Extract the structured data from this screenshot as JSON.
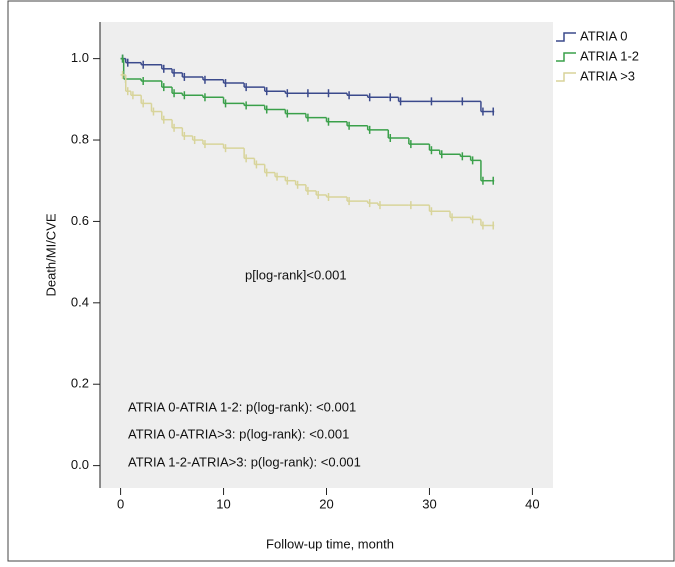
{
  "chart_data": {
    "type": "step",
    "x_label": "Follow-up time, month",
    "y_label": "Death/MI/CVE",
    "annotations": [
      "p[log-rank]<0.001",
      "ATRIA 0-ATRIA 1-2: p(log-rank): <0.001",
      "ATRIA 0-ATRIA>3: p(log-rank): <0.001",
      "ATRIA 1-2-ATRIA>3: p(log-rank): <0.001"
    ],
    "xlim": [
      -2,
      42
    ],
    "xticks": [
      0,
      10,
      20,
      30,
      40
    ],
    "ylim": [
      -0.055,
      1.09
    ],
    "yticks": [
      {
        "value": 0,
        "label": "0.0"
      },
      0.2,
      0.4,
      0.6,
      0.8,
      {
        "value": 1,
        "label": "1.0"
      }
    ],
    "series": [
      {
        "name": "ATRIA 0",
        "color": "#3b4a8c",
        "x": [
          0,
          0.5,
          2,
          4,
          5,
          6,
          8,
          10,
          12,
          14,
          16,
          18,
          20,
          22,
          24,
          26,
          27,
          30,
          33,
          35,
          36
        ],
        "values": [
          1.0,
          0.99,
          0.985,
          0.975,
          0.965,
          0.955,
          0.948,
          0.94,
          0.93,
          0.92,
          0.915,
          0.915,
          0.915,
          0.91,
          0.905,
          0.905,
          0.895,
          0.895,
          0.895,
          0.87,
          0.87
        ]
      },
      {
        "name": "ATRIA 1-2",
        "color": "#3aa04a",
        "x": [
          0,
          0.3,
          2,
          4,
          5,
          6,
          8,
          10,
          12,
          14,
          16,
          18,
          20,
          22,
          24,
          26,
          28,
          30,
          31,
          33,
          34,
          35,
          36
        ],
        "values": [
          1.0,
          0.95,
          0.945,
          0.93,
          0.915,
          0.91,
          0.905,
          0.89,
          0.885,
          0.875,
          0.865,
          0.855,
          0.845,
          0.835,
          0.825,
          0.805,
          0.79,
          0.775,
          0.765,
          0.76,
          0.75,
          0.7,
          0.7
        ]
      },
      {
        "name": "ATRIA >3",
        "color": "#d8d49a",
        "x": [
          0,
          0.5,
          1,
          2,
          3,
          4,
          5,
          6,
          7,
          8,
          10,
          12,
          13,
          14,
          15,
          16,
          17,
          18,
          19,
          20,
          22,
          24,
          25,
          28,
          30,
          32,
          34,
          35,
          36
        ],
        "values": [
          0.96,
          0.92,
          0.91,
          0.89,
          0.87,
          0.85,
          0.83,
          0.81,
          0.8,
          0.79,
          0.78,
          0.755,
          0.74,
          0.72,
          0.71,
          0.7,
          0.69,
          0.675,
          0.665,
          0.66,
          0.65,
          0.645,
          0.64,
          0.64,
          0.625,
          0.61,
          0.605,
          0.59,
          0.59
        ]
      }
    ]
  }
}
